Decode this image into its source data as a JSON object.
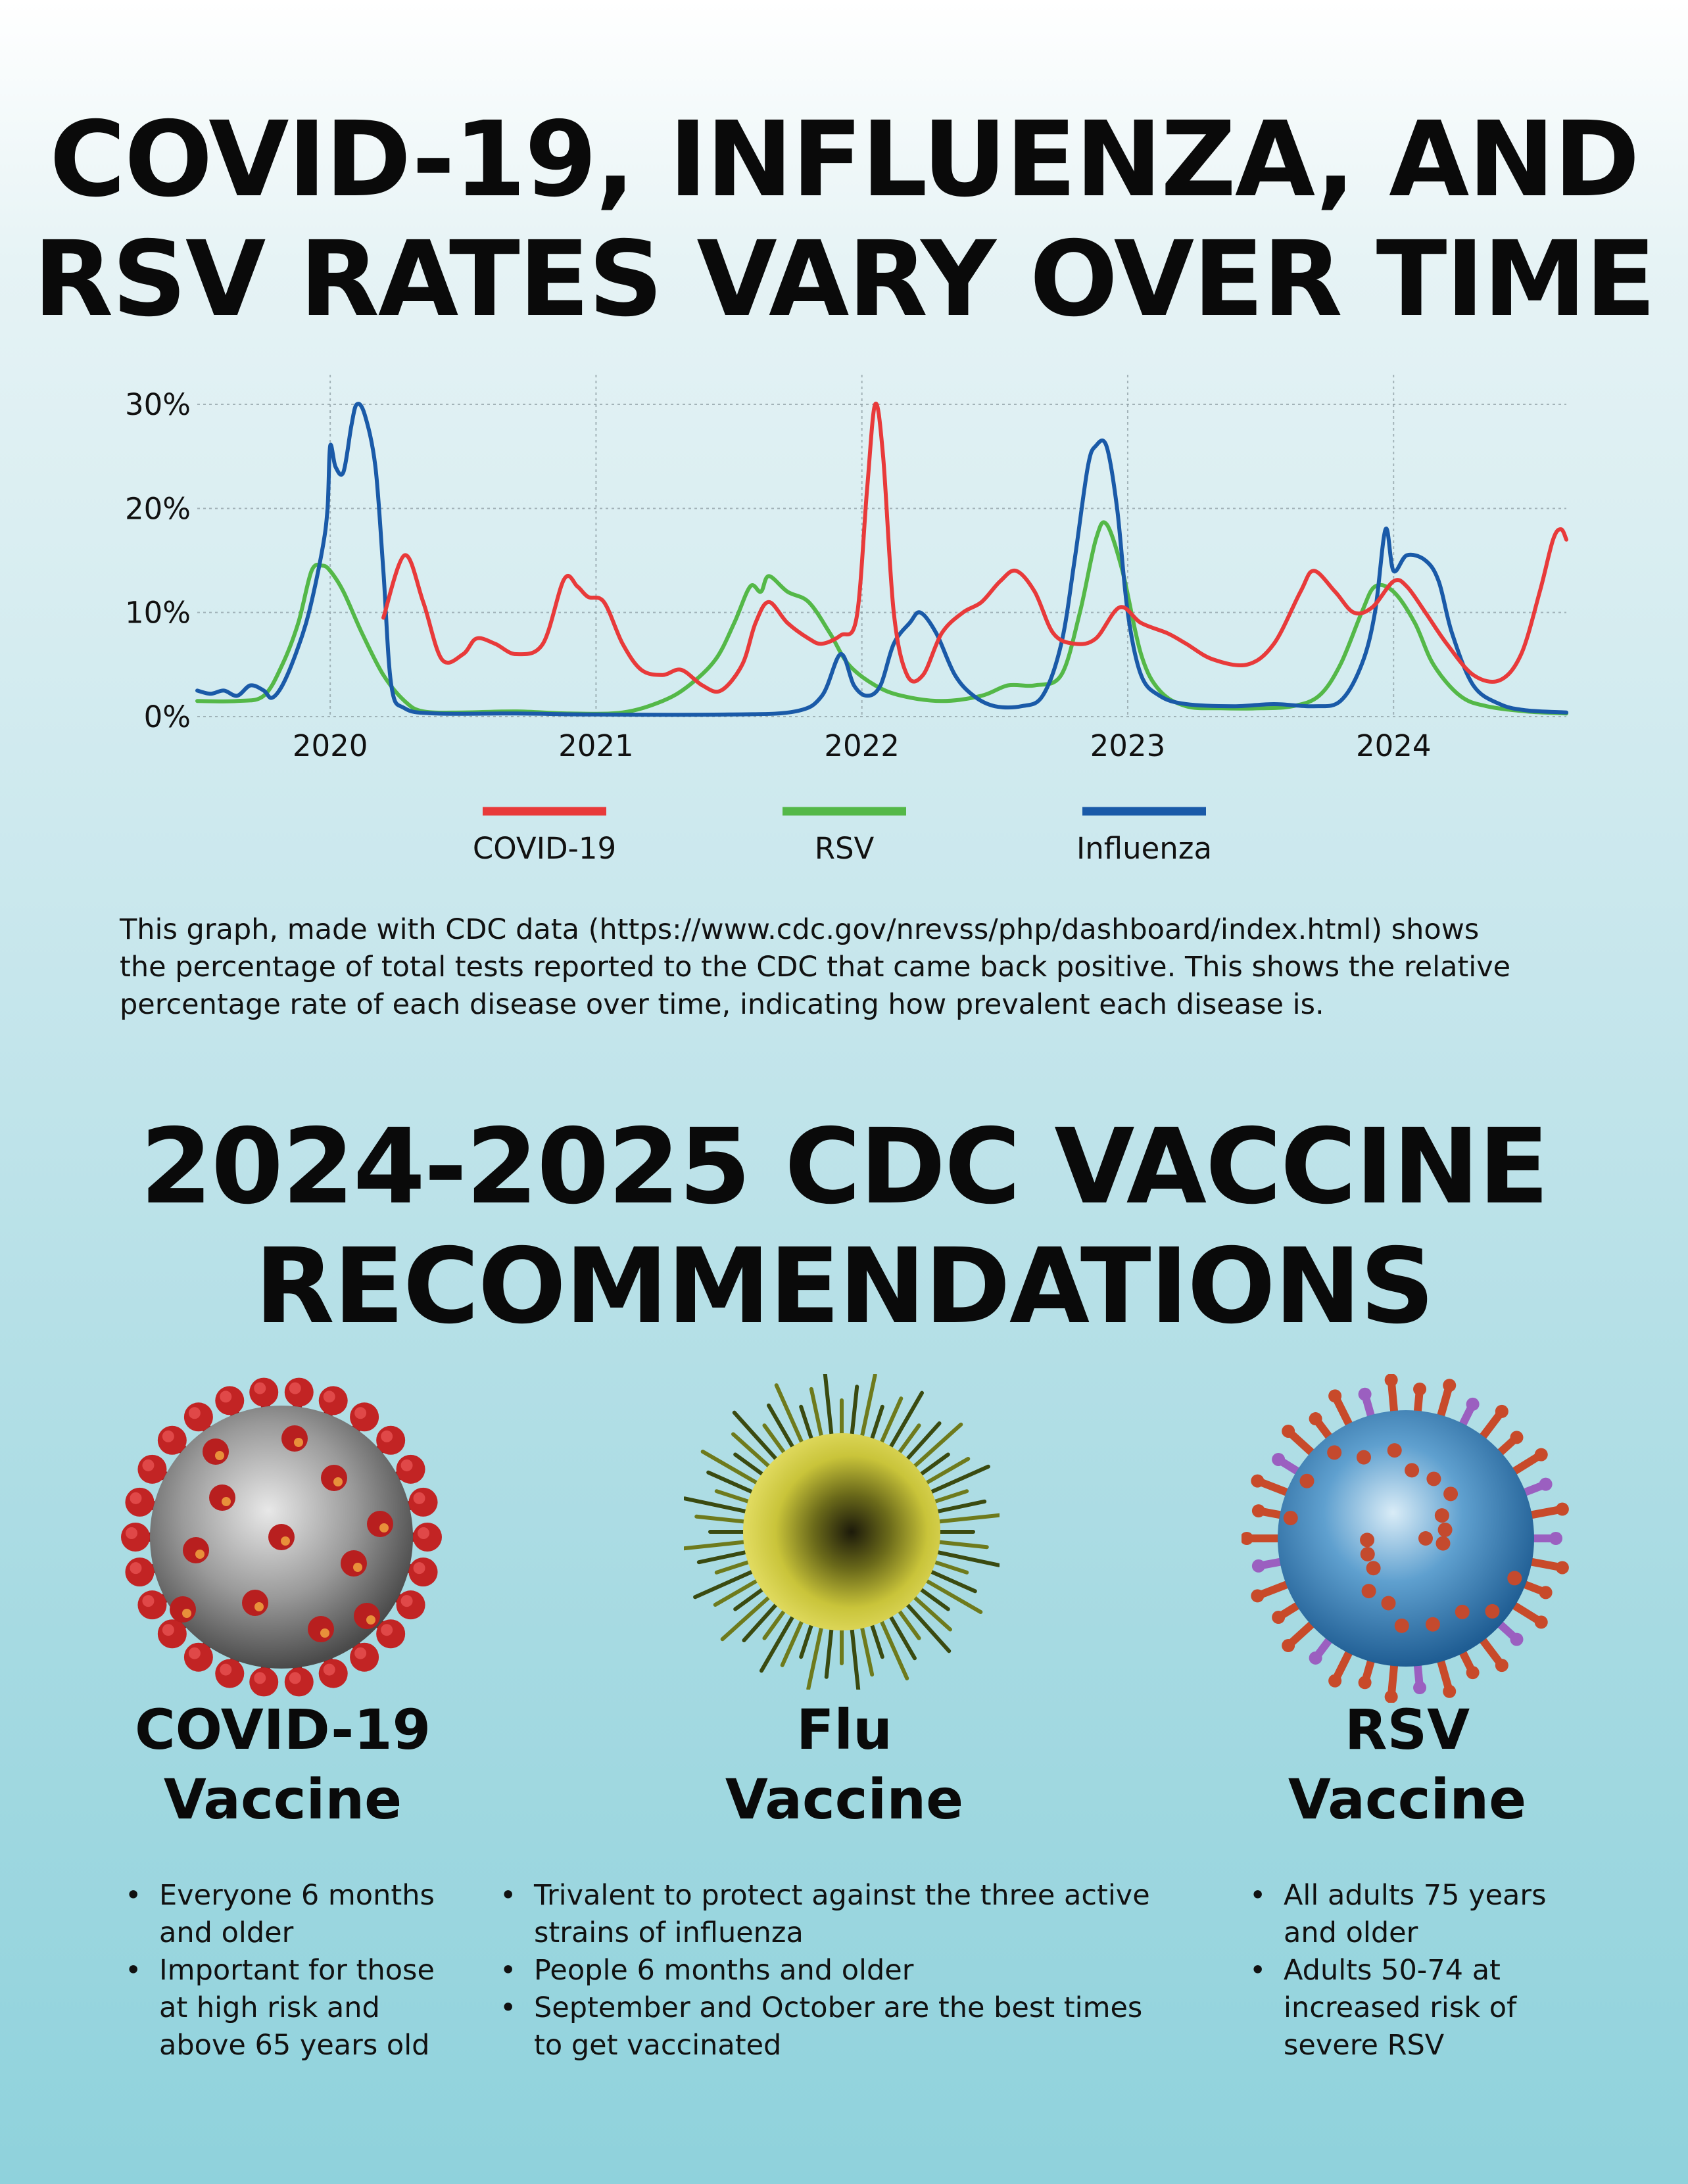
{
  "headline_top": {
    "line1": "COVID-19, INFLUENZA, AND",
    "line2": "RSV RATES VARY OVER TIME"
  },
  "chart_data": {
    "type": "line",
    "title": "COVID-19, INFLUENZA, AND RSV RATES VARY OVER TIME",
    "xlabel": "",
    "ylabel": "",
    "xlim": [
      2019.5,
      2024.65
    ],
    "ylim": [
      0,
      30
    ],
    "x_ticks": [
      2020,
      2021,
      2022,
      2023,
      2024
    ],
    "x_tick_labels": [
      "2020",
      "2021",
      "2022",
      "2023",
      "2024"
    ],
    "y_ticks": [
      0,
      10,
      20,
      30
    ],
    "y_tick_labels": [
      "0%",
      "10%",
      "20%",
      "30%"
    ],
    "grid": true,
    "legend": "bottom-center",
    "series": [
      {
        "name": "COVID-19",
        "color": "#e83a3a",
        "points": [
          [
            2020.2,
            9.5
          ],
          [
            2020.28,
            15.5
          ],
          [
            2020.35,
            11
          ],
          [
            2020.42,
            5.5
          ],
          [
            2020.5,
            6
          ],
          [
            2020.55,
            7.5
          ],
          [
            2020.62,
            7
          ],
          [
            2020.7,
            6
          ],
          [
            2020.8,
            7
          ],
          [
            2020.88,
            13.2
          ],
          [
            2020.93,
            12.5
          ],
          [
            2020.97,
            11.5
          ],
          [
            2021.03,
            11
          ],
          [
            2021.1,
            7
          ],
          [
            2021.17,
            4.5
          ],
          [
            2021.25,
            4
          ],
          [
            2021.32,
            4.5
          ],
          [
            2021.4,
            3
          ],
          [
            2021.47,
            2.5
          ],
          [
            2021.55,
            5
          ],
          [
            2021.6,
            9
          ],
          [
            2021.65,
            11
          ],
          [
            2021.72,
            9
          ],
          [
            2021.8,
            7.5
          ],
          [
            2021.85,
            7
          ],
          [
            2021.92,
            7.8
          ],
          [
            2021.98,
            9.5
          ],
          [
            2022.02,
            22
          ],
          [
            2022.05,
            30
          ],
          [
            2022.08,
            25
          ],
          [
            2022.12,
            10
          ],
          [
            2022.17,
            4
          ],
          [
            2022.23,
            4
          ],
          [
            2022.3,
            8
          ],
          [
            2022.38,
            10
          ],
          [
            2022.45,
            11
          ],
          [
            2022.52,
            13
          ],
          [
            2022.58,
            14
          ],
          [
            2022.65,
            12
          ],
          [
            2022.72,
            8
          ],
          [
            2022.8,
            7
          ],
          [
            2022.88,
            7.5
          ],
          [
            2022.97,
            10.5
          ],
          [
            2023.05,
            9
          ],
          [
            2023.15,
            8
          ],
          [
            2023.22,
            7
          ],
          [
            2023.32,
            5.5
          ],
          [
            2023.45,
            5
          ],
          [
            2023.55,
            7
          ],
          [
            2023.65,
            12
          ],
          [
            2023.7,
            14
          ],
          [
            2023.78,
            12
          ],
          [
            2023.85,
            10
          ],
          [
            2023.92,
            10.5
          ],
          [
            2024.0,
            13
          ],
          [
            2024.05,
            12.5
          ],
          [
            2024.12,
            10
          ],
          [
            2024.2,
            7
          ],
          [
            2024.3,
            4
          ],
          [
            2024.4,
            3.5
          ],
          [
            2024.48,
            6
          ],
          [
            2024.55,
            12
          ],
          [
            2024.6,
            17
          ],
          [
            2024.63,
            18
          ],
          [
            2024.65,
            17
          ]
        ]
      },
      {
        "name": "RSV",
        "color": "#54b848",
        "points": [
          [
            2019.5,
            1.5
          ],
          [
            2019.65,
            1.5
          ],
          [
            2019.75,
            2
          ],
          [
            2019.82,
            5
          ],
          [
            2019.88,
            9
          ],
          [
            2019.93,
            14
          ],
          [
            2019.97,
            14.5
          ],
          [
            2020.0,
            14
          ],
          [
            2020.05,
            12
          ],
          [
            2020.12,
            8
          ],
          [
            2020.2,
            4
          ],
          [
            2020.28,
            1.5
          ],
          [
            2020.35,
            0.5
          ],
          [
            2020.5,
            0.4
          ],
          [
            2020.7,
            0.5
          ],
          [
            2020.9,
            0.3
          ],
          [
            2021.1,
            0.4
          ],
          [
            2021.25,
            1.5
          ],
          [
            2021.35,
            3
          ],
          [
            2021.45,
            5.5
          ],
          [
            2021.52,
            9
          ],
          [
            2021.58,
            12.5
          ],
          [
            2021.62,
            12
          ],
          [
            2021.65,
            13.5
          ],
          [
            2021.72,
            12
          ],
          [
            2021.8,
            11
          ],
          [
            2021.88,
            8
          ],
          [
            2021.95,
            5
          ],
          [
            2022.05,
            3
          ],
          [
            2022.15,
            2
          ],
          [
            2022.3,
            1.5
          ],
          [
            2022.45,
            2
          ],
          [
            2022.55,
            3
          ],
          [
            2022.65,
            3
          ],
          [
            2022.75,
            4
          ],
          [
            2022.82,
            10
          ],
          [
            2022.88,
            17
          ],
          [
            2022.92,
            18.5
          ],
          [
            2022.98,
            14
          ],
          [
            2023.05,
            6
          ],
          [
            2023.12,
            2.5
          ],
          [
            2023.22,
            1
          ],
          [
            2023.35,
            0.8
          ],
          [
            2023.5,
            0.8
          ],
          [
            2023.62,
            1
          ],
          [
            2023.72,
            2
          ],
          [
            2023.8,
            5
          ],
          [
            2023.88,
            10
          ],
          [
            2023.93,
            12.5
          ],
          [
            2024.0,
            12
          ],
          [
            2024.08,
            9
          ],
          [
            2024.15,
            5
          ],
          [
            2024.25,
            2
          ],
          [
            2024.35,
            1
          ],
          [
            2024.5,
            0.5
          ],
          [
            2024.65,
            0.3
          ]
        ]
      },
      {
        "name": "Influenza",
        "color": "#1a5aa8",
        "points": [
          [
            2019.5,
            2.5
          ],
          [
            2019.55,
            2.2
          ],
          [
            2019.6,
            2.5
          ],
          [
            2019.65,
            2
          ],
          [
            2019.7,
            3
          ],
          [
            2019.75,
            2.5
          ],
          [
            2019.78,
            1.8
          ],
          [
            2019.82,
            3
          ],
          [
            2019.87,
            6
          ],
          [
            2019.92,
            10
          ],
          [
            2019.97,
            16
          ],
          [
            2019.99,
            20
          ],
          [
            2020.0,
            26
          ],
          [
            2020.02,
            24
          ],
          [
            2020.05,
            23.5
          ],
          [
            2020.08,
            28
          ],
          [
            2020.1,
            30
          ],
          [
            2020.13,
            29
          ],
          [
            2020.17,
            24
          ],
          [
            2020.2,
            14
          ],
          [
            2020.23,
            3
          ],
          [
            2020.28,
            0.8
          ],
          [
            2020.4,
            0.3
          ],
          [
            2020.7,
            0.3
          ],
          [
            2021.0,
            0.2
          ],
          [
            2021.5,
            0.2
          ],
          [
            2021.75,
            0.5
          ],
          [
            2021.85,
            2
          ],
          [
            2021.92,
            6
          ],
          [
            2021.97,
            3
          ],
          [
            2022.02,
            2
          ],
          [
            2022.07,
            3
          ],
          [
            2022.12,
            7
          ],
          [
            2022.18,
            9
          ],
          [
            2022.22,
            10
          ],
          [
            2022.28,
            8
          ],
          [
            2022.35,
            4
          ],
          [
            2022.42,
            2
          ],
          [
            2022.5,
            1
          ],
          [
            2022.6,
            1
          ],
          [
            2022.68,
            2
          ],
          [
            2022.75,
            7
          ],
          [
            2022.8,
            15
          ],
          [
            2022.85,
            24
          ],
          [
            2022.88,
            26
          ],
          [
            2022.92,
            26
          ],
          [
            2022.96,
            20
          ],
          [
            2023.0,
            10
          ],
          [
            2023.05,
            4
          ],
          [
            2023.12,
            2
          ],
          [
            2023.22,
            1.2
          ],
          [
            2023.4,
            1
          ],
          [
            2023.55,
            1.2
          ],
          [
            2023.7,
            1
          ],
          [
            2023.8,
            1.5
          ],
          [
            2023.88,
            5
          ],
          [
            2023.93,
            10
          ],
          [
            2023.97,
            18
          ],
          [
            2024.0,
            14
          ],
          [
            2024.05,
            15.5
          ],
          [
            2024.12,
            15
          ],
          [
            2024.17,
            13
          ],
          [
            2024.22,
            8
          ],
          [
            2024.3,
            3
          ],
          [
            2024.4,
            1.2
          ],
          [
            2024.5,
            0.6
          ],
          [
            2024.65,
            0.4
          ]
        ]
      }
    ]
  },
  "description": {
    "line1": "This graph, made with CDC data  (https://www.cdc.gov/nrevss/php/dashboard/index.html) shows",
    "line2": "the percentage of total tests reported to the CDC that came back positive. This shows the relative",
    "line3": "percentage rate of each disease over time, indicating how prevalent each disease is."
  },
  "headline_bottom": {
    "line1": "2024-2025 CDC VACCINE",
    "line2": "RECOMMENDATIONS"
  },
  "vaccines": [
    {
      "title1": "COVID-19",
      "title2": "Vaccine",
      "icon": "coronavirus-icon",
      "bullets": [
        {
          "l1": "Everyone 6 months",
          "l2": "and older",
          "l3": ""
        },
        {
          "l1": "Important for those",
          "l2": "at high risk and",
          "l3": "above 65 years old"
        }
      ]
    },
    {
      "title1": "Flu",
      "title2": "Vaccine",
      "icon": "influenza-virus-icon",
      "bullets": [
        {
          "l1": "Trivalent to protect against the three active",
          "l2": "strains of influenza",
          "l3": ""
        },
        {
          "l1": "People 6 months and older",
          "l2": "",
          "l3": ""
        },
        {
          "l1": "September and October are the best times",
          "l2": "to get vaccinated",
          "l3": ""
        }
      ]
    },
    {
      "title1": "RSV",
      "title2": "Vaccine",
      "icon": "rsv-virus-icon",
      "bullets": [
        {
          "l1": "All adults 75 years",
          "l2": "and older",
          "l3": ""
        },
        {
          "l1": "Adults 50-74 at",
          "l2": "increased risk of",
          "l3": "severe RSV"
        }
      ]
    }
  ]
}
